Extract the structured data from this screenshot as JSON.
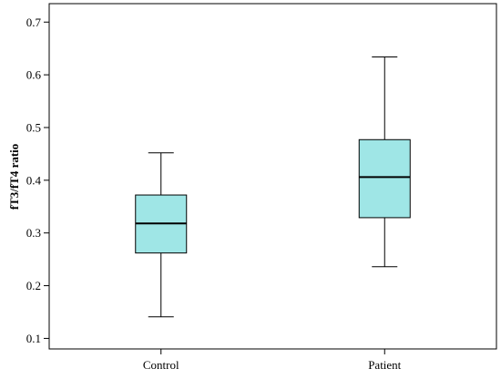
{
  "chart_data": {
    "type": "box",
    "title": "",
    "xlabel": "",
    "ylabel": "fT3/fT4 ratio",
    "ylim": [
      0.08,
      0.735
    ],
    "yticks": [
      0.1,
      0.2,
      0.3,
      0.4,
      0.5,
      0.6,
      0.7
    ],
    "ytick_labels": [
      "0.1",
      "0.2",
      "0.3",
      "0.4",
      "0.5",
      "0.6",
      "0.7"
    ],
    "categories": [
      "Control",
      "Patient"
    ],
    "boxes": [
      {
        "name": "Control",
        "min": 0.141,
        "q1": 0.262,
        "median": 0.318,
        "q3": 0.372,
        "max": 0.452
      },
      {
        "name": "Patient",
        "min": 0.236,
        "q1": 0.329,
        "median": 0.406,
        "q3": 0.477,
        "max": 0.634
      }
    ],
    "box_fill": "#9fe6e6",
    "grid": false
  }
}
